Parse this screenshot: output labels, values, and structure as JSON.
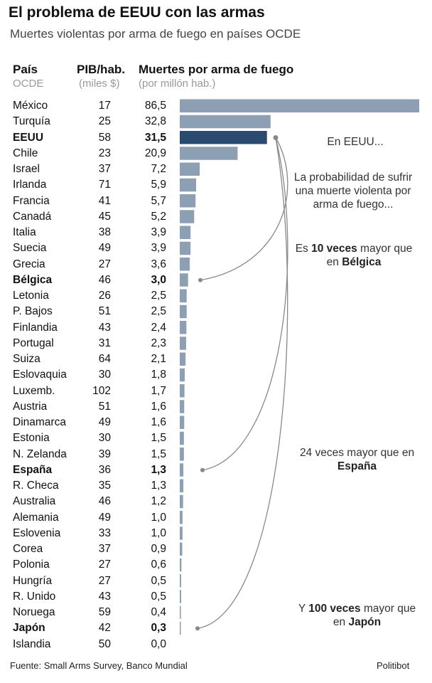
{
  "title": "El problema de EEUU con las armas",
  "subtitle": "Muertes violentas por arma de fuego en países OCDE",
  "headers": {
    "country": "País",
    "country_sub": "OCDE",
    "gdp": "PIB/hab.",
    "gdp_sub": "(miles $)",
    "deaths": "Muertes por arma de fuego",
    "deaths_sub": "(por millón hab.)"
  },
  "colors": {
    "bar": "#8d9fb2",
    "highlight": "#2b4a6f",
    "line": "#888888"
  },
  "annotations": {
    "eeuu": "En EEUU...",
    "prob": "La probabilidad de sufrir una muerte violenta por arma de fuego...",
    "belgica_pre": "Es ",
    "belgica_mult": "10 veces",
    "belgica_mid": " mayor que en ",
    "belgica_country": "Bélgica",
    "espana_pre": "24 veces mayor que en ",
    "espana_country": "España",
    "japon_pre": "Y ",
    "japon_mult": "100 veces",
    "japon_mid": " mayor que en ",
    "japon_country": "Japón"
  },
  "footer": {
    "source": "Fuente: Small Arms Survey, Banco Mundial",
    "brand": "Politibot"
  },
  "chart_data": {
    "type": "bar",
    "orientation": "horizontal",
    "title": "El problema de EEUU con las armas",
    "xlabel": "Muertes por arma de fuego (por millón hab.)",
    "xlim": [
      0,
      86.5
    ],
    "rows": [
      {
        "country": "México",
        "gdp": "17",
        "deaths_label": "86,5",
        "value": 86.5,
        "bold": false,
        "highlight": false
      },
      {
        "country": "Turquía",
        "gdp": "25",
        "deaths_label": "32,8",
        "value": 32.8,
        "bold": false,
        "highlight": false
      },
      {
        "country": "EEUU",
        "gdp": "58",
        "deaths_label": "31,5",
        "value": 31.5,
        "bold": true,
        "highlight": true
      },
      {
        "country": "Chile",
        "gdp": "23",
        "deaths_label": "20,9",
        "value": 20.9,
        "bold": false,
        "highlight": false
      },
      {
        "country": "Israel",
        "gdp": "37",
        "deaths_label": "7,2",
        "value": 7.2,
        "bold": false,
        "highlight": false
      },
      {
        "country": "Irlanda",
        "gdp": "71",
        "deaths_label": "5,9",
        "value": 5.9,
        "bold": false,
        "highlight": false
      },
      {
        "country": "Francia",
        "gdp": "41",
        "deaths_label": "5,7",
        "value": 5.7,
        "bold": false,
        "highlight": false
      },
      {
        "country": "Canadá",
        "gdp": "45",
        "deaths_label": "5,2",
        "value": 5.2,
        "bold": false,
        "highlight": false
      },
      {
        "country": "Italia",
        "gdp": "38",
        "deaths_label": "3,9",
        "value": 3.9,
        "bold": false,
        "highlight": false
      },
      {
        "country": "Suecia",
        "gdp": "49",
        "deaths_label": "3,9",
        "value": 3.9,
        "bold": false,
        "highlight": false
      },
      {
        "country": "Grecia",
        "gdp": "27",
        "deaths_label": "3,6",
        "value": 3.6,
        "bold": false,
        "highlight": false
      },
      {
        "country": "Bélgica",
        "gdp": "46",
        "deaths_label": "3,0",
        "value": 3.0,
        "bold": true,
        "highlight": false
      },
      {
        "country": "Letonia",
        "gdp": "26",
        "deaths_label": "2,5",
        "value": 2.5,
        "bold": false,
        "highlight": false
      },
      {
        "country": "P. Bajos",
        "gdp": "51",
        "deaths_label": "2,5",
        "value": 2.5,
        "bold": false,
        "highlight": false
      },
      {
        "country": "Finlandia",
        "gdp": "43",
        "deaths_label": "2,4",
        "value": 2.4,
        "bold": false,
        "highlight": false
      },
      {
        "country": "Portugal",
        "gdp": "31",
        "deaths_label": "2,3",
        "value": 2.3,
        "bold": false,
        "highlight": false
      },
      {
        "country": "Suiza",
        "gdp": "64",
        "deaths_label": "2,1",
        "value": 2.1,
        "bold": false,
        "highlight": false
      },
      {
        "country": "Eslovaquia",
        "gdp": "30",
        "deaths_label": "1,8",
        "value": 1.8,
        "bold": false,
        "highlight": false
      },
      {
        "country": "Luxemb.",
        "gdp": "102",
        "deaths_label": "1,7",
        "value": 1.7,
        "bold": false,
        "highlight": false
      },
      {
        "country": "Austria",
        "gdp": "51",
        "deaths_label": "1,6",
        "value": 1.6,
        "bold": false,
        "highlight": false
      },
      {
        "country": "Dinamarca",
        "gdp": "49",
        "deaths_label": "1,6",
        "value": 1.6,
        "bold": false,
        "highlight": false
      },
      {
        "country": "Estonia",
        "gdp": "30",
        "deaths_label": "1,5",
        "value": 1.5,
        "bold": false,
        "highlight": false
      },
      {
        "country": "N. Zelanda",
        "gdp": "39",
        "deaths_label": "1,5",
        "value": 1.5,
        "bold": false,
        "highlight": false
      },
      {
        "country": "España",
        "gdp": "36",
        "deaths_label": "1,3",
        "value": 1.3,
        "bold": true,
        "highlight": false
      },
      {
        "country": "R. Checa",
        "gdp": "35",
        "deaths_label": "1,3",
        "value": 1.3,
        "bold": false,
        "highlight": false
      },
      {
        "country": "Australia",
        "gdp": "46",
        "deaths_label": "1,2",
        "value": 1.2,
        "bold": false,
        "highlight": false
      },
      {
        "country": "Alemania",
        "gdp": "49",
        "deaths_label": "1,0",
        "value": 1.0,
        "bold": false,
        "highlight": false
      },
      {
        "country": "Eslovenia",
        "gdp": "33",
        "deaths_label": "1,0",
        "value": 1.0,
        "bold": false,
        "highlight": false
      },
      {
        "country": "Corea",
        "gdp": "37",
        "deaths_label": "0,9",
        "value": 0.9,
        "bold": false,
        "highlight": false
      },
      {
        "country": "Polonia",
        "gdp": "27",
        "deaths_label": "0,6",
        "value": 0.6,
        "bold": false,
        "highlight": false
      },
      {
        "country": "Hungría",
        "gdp": "27",
        "deaths_label": "0,5",
        "value": 0.5,
        "bold": false,
        "highlight": false
      },
      {
        "country": "R. Unido",
        "gdp": "43",
        "deaths_label": "0,5",
        "value": 0.5,
        "bold": false,
        "highlight": false
      },
      {
        "country": "Noruega",
        "gdp": "59",
        "deaths_label": "0,4",
        "value": 0.4,
        "bold": false,
        "highlight": false
      },
      {
        "country": "Japón",
        "gdp": "42",
        "deaths_label": "0,3",
        "value": 0.3,
        "bold": true,
        "highlight": false
      },
      {
        "country": "Islandia",
        "gdp": "50",
        "deaths_label": "0,0",
        "value": 0.0,
        "bold": false,
        "highlight": false
      }
    ]
  }
}
